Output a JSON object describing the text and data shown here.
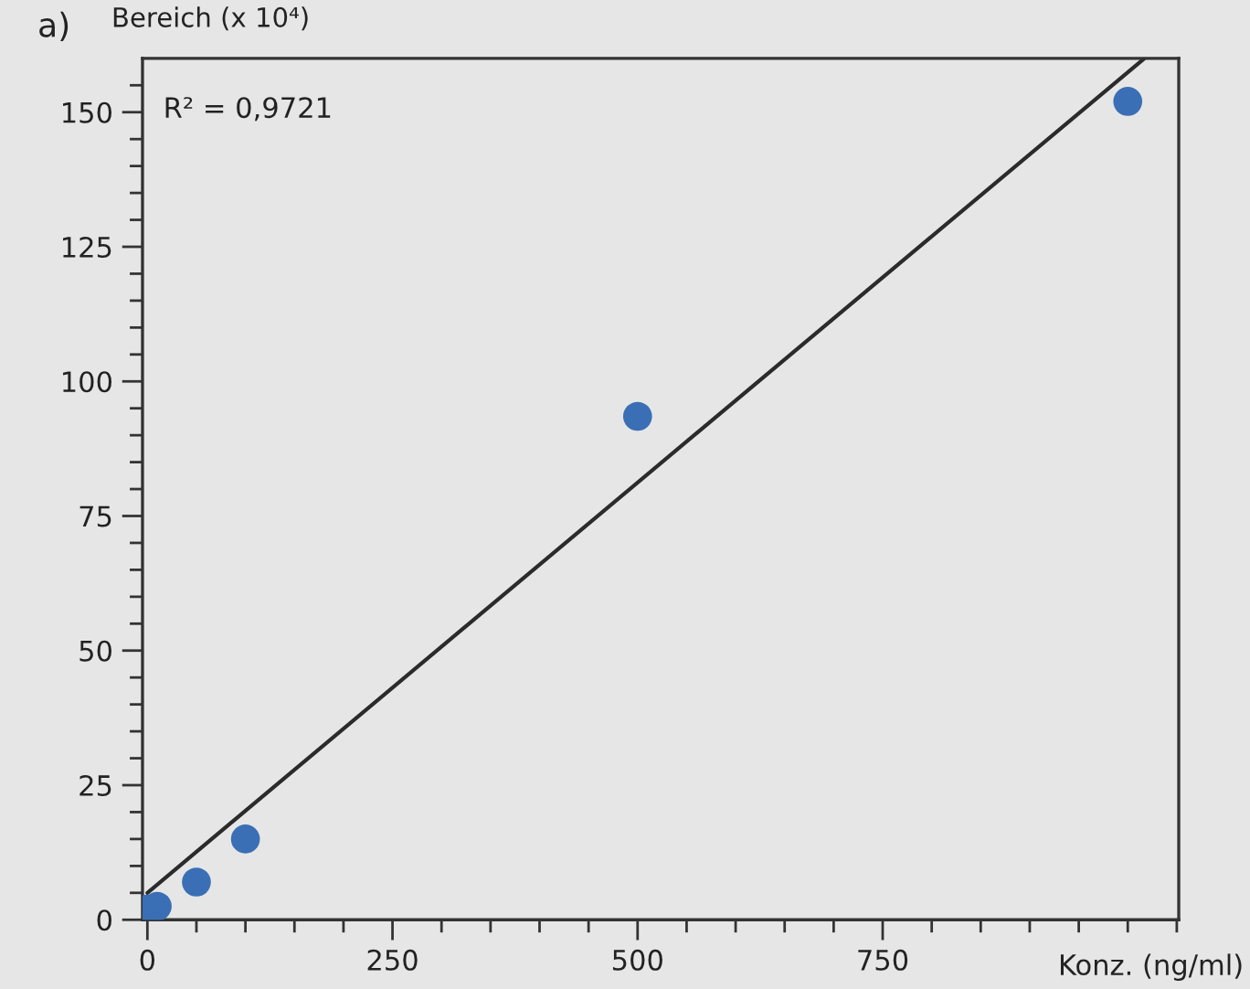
{
  "chart_data": {
    "type": "scatter",
    "ylabel": "Bereich (x 10⁴)",
    "xlabel": "Konz. (ng/ml)",
    "annotations": [
      "a)",
      "R² = 0,9721"
    ],
    "series": [
      {
        "color": "#3a6fb5",
        "marker": "circle",
        "x": [
          0,
          10,
          50,
          100,
          500,
          1000
        ],
        "values": [
          2,
          2.5,
          7,
          15,
          93.5,
          152
        ]
      },
      {
        "type": "line",
        "color": "#2b2b2b",
        "line_style": "solid",
        "marker": "none",
        "x": [
          0,
          1017
        ],
        "values": [
          5,
          160
        ]
      }
    ],
    "xlim": [
      -5,
      1052
    ],
    "ylim": [
      0,
      160
    ],
    "xticks": [
      0,
      {
        "value": 50,
        "label": null
      },
      {
        "value": 100,
        "label": null
      },
      {
        "value": 150,
        "label": null
      },
      {
        "value": 200,
        "label": null
      },
      250,
      {
        "value": 300,
        "label": null
      },
      {
        "value": 350,
        "label": null
      },
      {
        "value": 400,
        "label": null
      },
      {
        "value": 450,
        "label": null
      },
      500,
      {
        "value": 550,
        "label": null
      },
      {
        "value": 600,
        "label": null
      },
      {
        "value": 650,
        "label": null
      },
      {
        "value": 700,
        "label": null
      },
      750,
      {
        "value": 800,
        "label": null
      },
      {
        "value": 850,
        "label": null
      },
      {
        "value": 900,
        "label": null
      },
      {
        "value": 950,
        "label": null
      },
      {
        "value": 1000,
        "label": null
      },
      {
        "value": 1050,
        "label": null
      }
    ],
    "yticks": [
      0,
      {
        "value": 5,
        "label": null
      },
      {
        "value": 10,
        "label": null
      },
      {
        "value": 15,
        "label": null
      },
      {
        "value": 20,
        "label": null
      },
      25,
      {
        "value": 30,
        "label": null
      },
      {
        "value": 35,
        "label": null
      },
      {
        "value": 40,
        "label": null
      },
      {
        "value": 45,
        "label": null
      },
      50,
      {
        "value": 55,
        "label": null
      },
      {
        "value": 60,
        "label": null
      },
      {
        "value": 65,
        "label": null
      },
      {
        "value": 70,
        "label": null
      },
      75,
      {
        "value": 80,
        "label": null
      },
      {
        "value": 85,
        "label": null
      },
      {
        "value": 90,
        "label": null
      },
      {
        "value": 95,
        "label": null
      },
      100,
      {
        "value": 105,
        "label": null
      },
      {
        "value": 110,
        "label": null
      },
      {
        "value": 115,
        "label": null
      },
      {
        "value": 120,
        "label": null
      },
      125,
      {
        "value": 130,
        "label": null
      },
      {
        "value": 135,
        "label": null
      },
      {
        "value": 140,
        "label": null
      },
      {
        "value": 145,
        "label": null
      },
      150,
      {
        "value": 155,
        "label": null
      }
    ],
    "grid": false,
    "legend": false
  }
}
